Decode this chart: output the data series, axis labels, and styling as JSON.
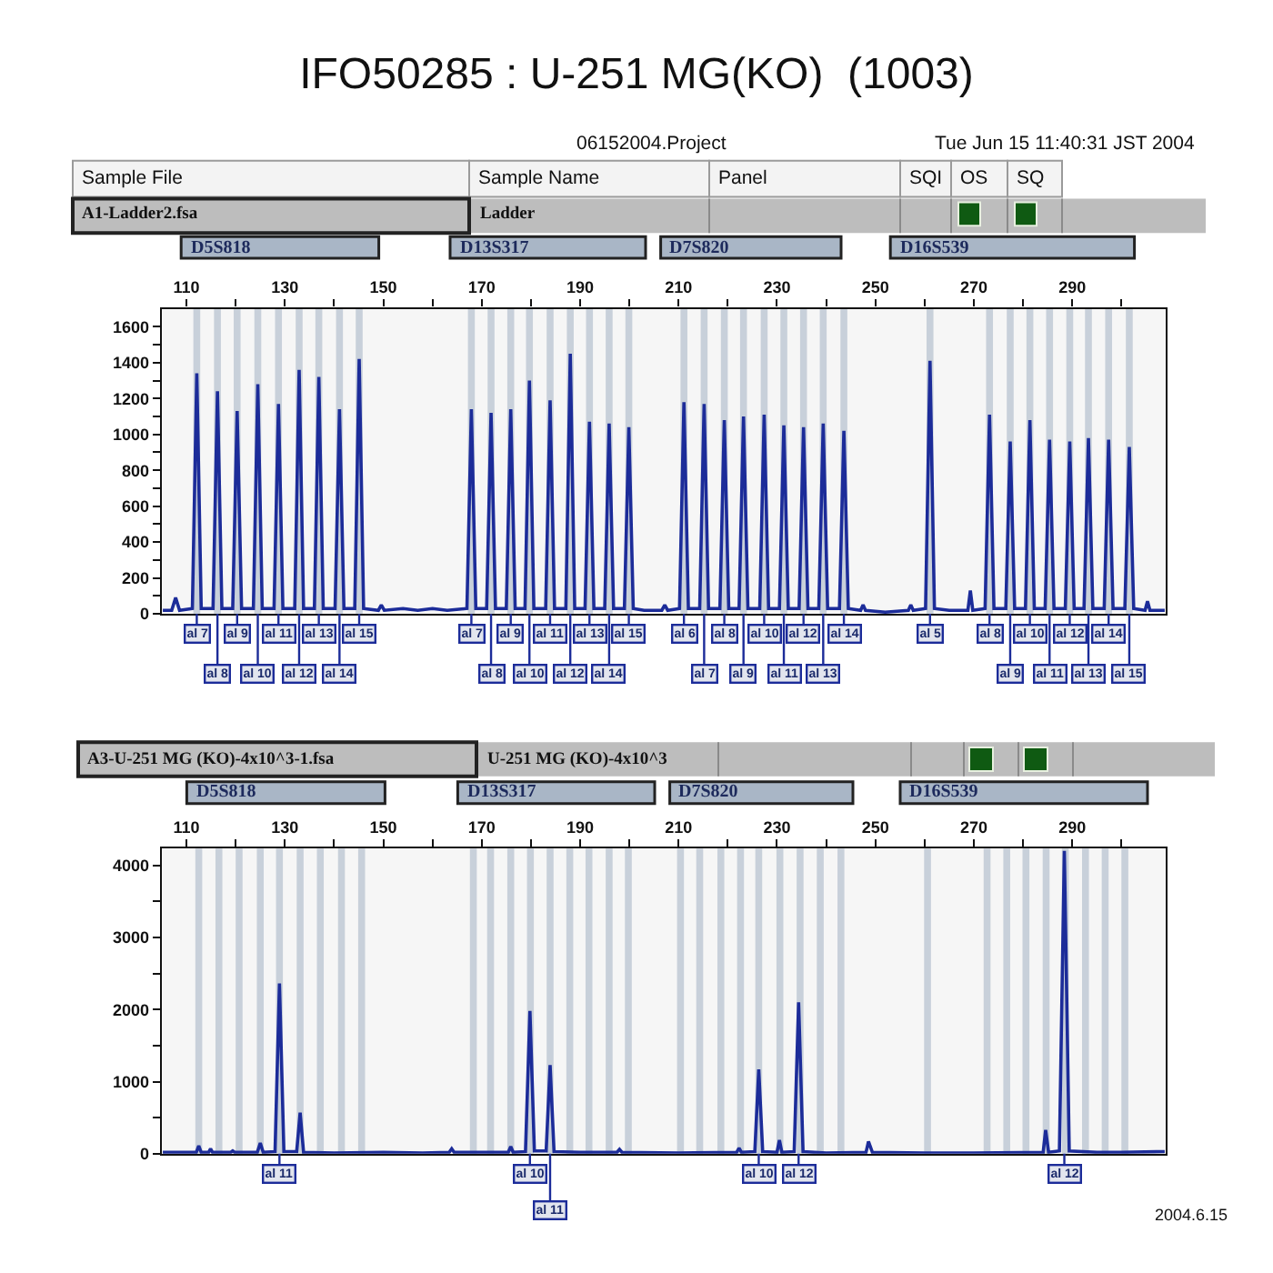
{
  "chart_data": [
    {
      "type": "line",
      "title": "IFO50285 : U-251 MG(KO)  (1003)",
      "x": [
        105.2,
        107.0,
        107.8,
        108.6,
        111.2,
        112.1,
        113.0,
        115.4,
        116.3,
        117.2,
        119.4,
        120.3,
        121.2,
        123.6,
        124.5,
        125.4,
        127.8,
        128.7,
        129.6,
        132.0,
        132.9,
        133.8,
        136.0,
        136.9,
        137.8,
        140.2,
        141.1,
        142.0,
        144.2,
        145.1,
        146.0,
        149.0,
        149.6,
        150.2,
        154.0,
        157.0,
        160.0,
        163.0,
        167.0,
        167.9,
        168.8,
        171.0,
        171.9,
        172.8,
        175.0,
        175.9,
        176.8,
        178.8,
        179.7,
        180.6,
        183.0,
        183.9,
        184.8,
        187.1,
        188.0,
        188.9,
        191.0,
        191.9,
        192.8,
        195.0,
        195.9,
        196.8,
        199.0,
        199.9,
        200.8,
        203.0,
        206.6,
        207.2,
        207.8,
        210.2,
        211.1,
        212.0,
        214.3,
        215.2,
        216.1,
        218.4,
        219.3,
        220.2,
        222.3,
        223.2,
        224.1,
        226.5,
        227.4,
        228.3,
        230.5,
        231.4,
        232.3,
        234.5,
        235.4,
        236.3,
        238.5,
        239.4,
        240.3,
        242.7,
        243.6,
        244.5,
        247.0,
        247.5,
        248.0,
        252.0,
        256.7,
        257.2,
        257.7,
        260.2,
        261.1,
        262.0,
        265.0,
        268.8,
        269.3,
        269.8,
        272.3,
        273.2,
        274.1,
        276.5,
        277.4,
        278.3,
        280.5,
        281.4,
        282.3,
        284.5,
        285.4,
        286.3,
        288.6,
        289.5,
        290.4,
        292.4,
        293.3,
        294.2,
        296.5,
        297.4,
        298.3,
        300.7,
        301.6,
        302.5,
        304.8,
        305.3,
        305.8,
        308.8
      ],
      "series": [
        {
          "color": "#1c2c99",
          "values": [
            20,
            20,
            90,
            20,
            30,
            1340,
            30,
            30,
            1240,
            30,
            30,
            1130,
            30,
            30,
            1280,
            30,
            30,
            1170,
            30,
            30,
            1360,
            30,
            30,
            1320,
            30,
            30,
            1140,
            30,
            30,
            1420,
            30,
            20,
            50,
            20,
            30,
            20,
            30,
            20,
            30,
            1140,
            30,
            30,
            1120,
            30,
            30,
            1140,
            30,
            30,
            1300,
            30,
            30,
            1190,
            30,
            30,
            1450,
            30,
            30,
            1070,
            30,
            30,
            1060,
            30,
            30,
            1040,
            30,
            20,
            20,
            50,
            20,
            30,
            1180,
            30,
            30,
            1170,
            30,
            30,
            1080,
            30,
            30,
            1100,
            30,
            30,
            1110,
            30,
            30,
            1050,
            30,
            30,
            1040,
            30,
            30,
            1060,
            30,
            30,
            1020,
            30,
            20,
            50,
            20,
            10,
            20,
            50,
            20,
            30,
            1410,
            30,
            20,
            20,
            130,
            20,
            30,
            1110,
            30,
            30,
            960,
            30,
            30,
            1080,
            30,
            30,
            970,
            30,
            30,
            960,
            30,
            30,
            980,
            30,
            30,
            970,
            30,
            30,
            930,
            30,
            20,
            70,
            20,
            20
          ]
        }
      ],
      "xlim": [
        105,
        309
      ],
      "ylim": [
        0,
        1700
      ],
      "xticks": [
        110,
        {
          "value": 120,
          "label": null
        },
        130,
        {
          "value": 140,
          "label": null
        },
        150,
        {
          "value": 160,
          "label": null
        },
        170,
        {
          "value": 180,
          "label": null
        },
        190,
        {
          "value": 200,
          "label": null
        },
        210,
        {
          "value": 220,
          "label": null
        },
        230,
        {
          "value": 240,
          "label": null
        },
        250,
        {
          "value": 260,
          "label": null
        },
        270,
        {
          "value": 280,
          "label": null
        },
        290,
        {
          "value": 300,
          "label": null
        }
      ],
      "yticks": [
        0,
        {
          "value": 100,
          "label": null
        },
        200,
        {
          "value": 300,
          "label": null
        },
        400,
        {
          "value": 500,
          "label": null
        },
        600,
        {
          "value": 700,
          "label": null
        },
        800,
        {
          "value": 900,
          "label": null
        },
        1000,
        {
          "value": 1100,
          "label": null
        },
        1200,
        {
          "value": 1300,
          "label": null
        },
        1400,
        {
          "value": 1500,
          "label": null
        },
        1600
      ],
      "bands": [
        {
          "axis": "x",
          "from": 111.4,
          "to": 112.8,
          "color": "#c8d0da"
        },
        {
          "axis": "x",
          "from": 115.6,
          "to": 117.0,
          "color": "#c8d0da"
        },
        {
          "axis": "x",
          "from": 119.6,
          "to": 121.0,
          "color": "#c8d0da"
        },
        {
          "axis": "x",
          "from": 123.8,
          "to": 125.2,
          "color": "#c8d0da"
        },
        {
          "axis": "x",
          "from": 128.0,
          "to": 129.4,
          "color": "#c8d0da"
        },
        {
          "axis": "x",
          "from": 132.2,
          "to": 133.6,
          "color": "#c8d0da"
        },
        {
          "axis": "x",
          "from": 136.2,
          "to": 137.6,
          "color": "#c8d0da"
        },
        {
          "axis": "x",
          "from": 140.4,
          "to": 141.8,
          "color": "#c8d0da"
        },
        {
          "axis": "x",
          "from": 144.4,
          "to": 145.8,
          "color": "#c8d0da"
        },
        {
          "axis": "x",
          "from": 167.2,
          "to": 168.6,
          "color": "#c8d0da"
        },
        {
          "axis": "x",
          "from": 171.2,
          "to": 172.6,
          "color": "#c8d0da"
        },
        {
          "axis": "x",
          "from": 175.2,
          "to": 176.6,
          "color": "#c8d0da"
        },
        {
          "axis": "x",
          "from": 179.0,
          "to": 180.4,
          "color": "#c8d0da"
        },
        {
          "axis": "x",
          "from": 183.2,
          "to": 184.6,
          "color": "#c8d0da"
        },
        {
          "axis": "x",
          "from": 187.3,
          "to": 188.7,
          "color": "#c8d0da"
        },
        {
          "axis": "x",
          "from": 191.2,
          "to": 192.6,
          "color": "#c8d0da"
        },
        {
          "axis": "x",
          "from": 195.2,
          "to": 196.6,
          "color": "#c8d0da"
        },
        {
          "axis": "x",
          "from": 199.2,
          "to": 200.6,
          "color": "#c8d0da"
        },
        {
          "axis": "x",
          "from": 210.4,
          "to": 211.8,
          "color": "#c8d0da"
        },
        {
          "axis": "x",
          "from": 214.5,
          "to": 215.9,
          "color": "#c8d0da"
        },
        {
          "axis": "x",
          "from": 218.6,
          "to": 220.0,
          "color": "#c8d0da"
        },
        {
          "axis": "x",
          "from": 222.5,
          "to": 223.9,
          "color": "#c8d0da"
        },
        {
          "axis": "x",
          "from": 226.7,
          "to": 228.1,
          "color": "#c8d0da"
        },
        {
          "axis": "x",
          "from": 230.7,
          "to": 232.1,
          "color": "#c8d0da"
        },
        {
          "axis": "x",
          "from": 234.7,
          "to": 236.1,
          "color": "#c8d0da"
        },
        {
          "axis": "x",
          "from": 238.7,
          "to": 240.1,
          "color": "#c8d0da"
        },
        {
          "axis": "x",
          "from": 242.9,
          "to": 244.3,
          "color": "#c8d0da"
        },
        {
          "axis": "x",
          "from": 260.4,
          "to": 261.8,
          "color": "#c8d0da"
        },
        {
          "axis": "x",
          "from": 272.5,
          "to": 273.9,
          "color": "#c8d0da"
        },
        {
          "axis": "x",
          "from": 276.7,
          "to": 278.1,
          "color": "#c8d0da"
        },
        {
          "axis": "x",
          "from": 280.7,
          "to": 282.1,
          "color": "#c8d0da"
        },
        {
          "axis": "x",
          "from": 284.7,
          "to": 286.1,
          "color": "#c8d0da"
        },
        {
          "axis": "x",
          "from": 288.8,
          "to": 290.2,
          "color": "#c8d0da"
        },
        {
          "axis": "x",
          "from": 292.6,
          "to": 294.0,
          "color": "#c8d0da"
        },
        {
          "axis": "x",
          "from": 296.7,
          "to": 298.1,
          "color": "#c8d0da"
        },
        {
          "axis": "x",
          "from": 300.9,
          "to": 302.3,
          "color": "#c8d0da"
        }
      ],
      "annotations": [
        "06152004.Project",
        "Tue Jun 15 11:40:31 JST 2004",
        "Sample File",
        "Sample Name",
        "Panel",
        "SQI",
        "OS",
        "SQ",
        "A1-Ladder2.fsa",
        "Ladder",
        "D5S818",
        "D13S317",
        "D7S820",
        "D16S539",
        {
          "text": "al 7",
          "x": 112.1,
          "y": 0
        },
        {
          "text": "al 8",
          "x": 116.3,
          "y": 0
        },
        {
          "text": "al 9",
          "x": 120.3,
          "y": 0
        },
        {
          "text": "al 10",
          "x": 124.5,
          "y": 0
        },
        {
          "text": "al 11",
          "x": 128.7,
          "y": 0
        },
        {
          "text": "al 12",
          "x": 132.9,
          "y": 0
        },
        {
          "text": "al 13",
          "x": 136.9,
          "y": 0
        },
        {
          "text": "al 14",
          "x": 141.1,
          "y": 0
        },
        {
          "text": "al 15",
          "x": 145.1,
          "y": 0
        },
        {
          "text": "al 7",
          "x": 167.9,
          "y": 0
        },
        {
          "text": "al 8",
          "x": 171.9,
          "y": 0
        },
        {
          "text": "al 9",
          "x": 175.9,
          "y": 0
        },
        {
          "text": "al 10",
          "x": 179.7,
          "y": 0
        },
        {
          "text": "al 11",
          "x": 183.9,
          "y": 0
        },
        {
          "text": "al 12",
          "x": 188.0,
          "y": 0
        },
        {
          "text": "al 13",
          "x": 191.9,
          "y": 0
        },
        {
          "text": "al 14",
          "x": 195.9,
          "y": 0
        },
        {
          "text": "al 15",
          "x": 199.9,
          "y": 0
        },
        {
          "text": "al 6",
          "x": 211.1,
          "y": 0
        },
        {
          "text": "al 7",
          "x": 215.2,
          "y": 0
        },
        {
          "text": "al 8",
          "x": 219.3,
          "y": 0
        },
        {
          "text": "al 9",
          "x": 223.2,
          "y": 0
        },
        {
          "text": "al 10",
          "x": 227.4,
          "y": 0
        },
        {
          "text": "al 11",
          "x": 231.4,
          "y": 0
        },
        {
          "text": "al 12",
          "x": 235.4,
          "y": 0
        },
        {
          "text": "al 13",
          "x": 239.4,
          "y": 0
        },
        {
          "text": "al 14",
          "x": 243.6,
          "y": 0
        },
        {
          "text": "al 5",
          "x": 261.1,
          "y": 0
        },
        {
          "text": "al 8",
          "x": 273.2,
          "y": 0
        },
        {
          "text": "al 9",
          "x": 277.4,
          "y": 0
        },
        {
          "text": "al 10",
          "x": 281.4,
          "y": 0
        },
        {
          "text": "al 11",
          "x": 285.4,
          "y": 0
        },
        {
          "text": "al 12",
          "x": 289.5,
          "y": 0
        },
        {
          "text": "al 13",
          "x": 293.3,
          "y": 0
        },
        {
          "text": "al 14",
          "x": 297.4,
          "y": 0
        },
        {
          "text": "al 15",
          "x": 301.6,
          "y": 0
        }
      ]
    },
    {
      "type": "line",
      "x": [
        105.2,
        112.0,
        112.5,
        113.0,
        114.5,
        114.9,
        115.3,
        119.0,
        119.4,
        119.8,
        124.4,
        125.0,
        125.6,
        128.0,
        128.9,
        129.8,
        132.4,
        133.1,
        133.8,
        140.0,
        150.0,
        158.0,
        163.4,
        163.9,
        164.4,
        170.0,
        175.4,
        175.9,
        176.4,
        178.9,
        179.8,
        180.7,
        183.1,
        183.9,
        184.7,
        190.0,
        197.5,
        198.0,
        198.5,
        210.0,
        221.8,
        222.3,
        222.8,
        225.5,
        226.3,
        227.1,
        230.0,
        230.5,
        231.0,
        233.5,
        234.4,
        235.3,
        240.0,
        248.1,
        248.6,
        249.4,
        260.0,
        270.0,
        284.1,
        284.6,
        285.2,
        287.4,
        288.4,
        289.4,
        295.0,
        300.0,
        308.8
      ],
      "series": [
        {
          "color": "#1c2c99",
          "values": [
            20,
            20,
            110,
            20,
            20,
            70,
            20,
            20,
            40,
            20,
            20,
            150,
            20,
            30,
            2360,
            30,
            30,
            570,
            20,
            10,
            20,
            10,
            20,
            70,
            20,
            20,
            20,
            100,
            20,
            30,
            1980,
            40,
            40,
            1230,
            30,
            20,
            20,
            60,
            20,
            10,
            20,
            80,
            20,
            30,
            1170,
            30,
            20,
            190,
            20,
            30,
            2100,
            30,
            10,
            20,
            170,
            20,
            10,
            10,
            20,
            330,
            20,
            40,
            4200,
            40,
            20,
            20,
            30
          ]
        }
      ],
      "xlim": [
        105,
        309
      ],
      "ylim": [
        0,
        4230
      ],
      "xticks": [
        110,
        {
          "value": 120,
          "label": null
        },
        130,
        {
          "value": 140,
          "label": null
        },
        150,
        {
          "value": 160,
          "label": null
        },
        170,
        {
          "value": 180,
          "label": null
        },
        190,
        {
          "value": 200,
          "label": null
        },
        210,
        {
          "value": 220,
          "label": null
        },
        230,
        {
          "value": 240,
          "label": null
        },
        250,
        {
          "value": 260,
          "label": null
        },
        270,
        {
          "value": 280,
          "label": null
        },
        290,
        {
          "value": 300,
          "label": null
        }
      ],
      "yticks": [
        0,
        {
          "value": 500,
          "label": null
        },
        1000,
        {
          "value": 1500,
          "label": null
        },
        2000,
        {
          "value": 2500,
          "label": null
        },
        3000,
        {
          "value": 3500,
          "label": null
        },
        4000
      ],
      "bands": [
        {
          "axis": "x",
          "from": 111.8,
          "to": 113.2,
          "color": "#c8d0da"
        },
        {
          "axis": "x",
          "from": 115.9,
          "to": 117.3,
          "color": "#c8d0da"
        },
        {
          "axis": "x",
          "from": 120.0,
          "to": 121.4,
          "color": "#c8d0da"
        },
        {
          "axis": "x",
          "from": 124.3,
          "to": 125.7,
          "color": "#c8d0da"
        },
        {
          "axis": "x",
          "from": 128.2,
          "to": 129.6,
          "color": "#c8d0da"
        },
        {
          "axis": "x",
          "from": 132.4,
          "to": 133.8,
          "color": "#c8d0da"
        },
        {
          "axis": "x",
          "from": 136.5,
          "to": 137.9,
          "color": "#c8d0da"
        },
        {
          "axis": "x",
          "from": 140.8,
          "to": 142.2,
          "color": "#c8d0da"
        },
        {
          "axis": "x",
          "from": 144.9,
          "to": 146.3,
          "color": "#c8d0da"
        },
        {
          "axis": "x",
          "from": 167.6,
          "to": 169.0,
          "color": "#c8d0da"
        },
        {
          "axis": "x",
          "from": 171.1,
          "to": 172.5,
          "color": "#c8d0da"
        },
        {
          "axis": "x",
          "from": 175.2,
          "to": 176.6,
          "color": "#c8d0da"
        },
        {
          "axis": "x",
          "from": 179.2,
          "to": 180.6,
          "color": "#c8d0da"
        },
        {
          "axis": "x",
          "from": 183.2,
          "to": 184.6,
          "color": "#c8d0da"
        },
        {
          "axis": "x",
          "from": 187.2,
          "to": 188.6,
          "color": "#c8d0da"
        },
        {
          "axis": "x",
          "from": 191.1,
          "to": 192.5,
          "color": "#c8d0da"
        },
        {
          "axis": "x",
          "from": 195.2,
          "to": 196.6,
          "color": "#c8d0da"
        },
        {
          "axis": "x",
          "from": 199.1,
          "to": 200.5,
          "color": "#c8d0da"
        },
        {
          "axis": "x",
          "from": 209.7,
          "to": 211.1,
          "color": "#c8d0da"
        },
        {
          "axis": "x",
          "from": 213.6,
          "to": 215.0,
          "color": "#c8d0da"
        },
        {
          "axis": "x",
          "from": 217.9,
          "to": 219.3,
          "color": "#c8d0da"
        },
        {
          "axis": "x",
          "from": 221.9,
          "to": 223.3,
          "color": "#c8d0da"
        },
        {
          "axis": "x",
          "from": 225.6,
          "to": 227.0,
          "color": "#c8d0da"
        },
        {
          "axis": "x",
          "from": 229.9,
          "to": 231.3,
          "color": "#c8d0da"
        },
        {
          "axis": "x",
          "from": 234.0,
          "to": 235.4,
          "color": "#c8d0da"
        },
        {
          "axis": "x",
          "from": 238.1,
          "to": 239.5,
          "color": "#c8d0da"
        },
        {
          "axis": "x",
          "from": 242.3,
          "to": 243.7,
          "color": "#c8d0da"
        },
        {
          "axis": "x",
          "from": 259.9,
          "to": 261.3,
          "color": "#c8d0da"
        },
        {
          "axis": "x",
          "from": 272.0,
          "to": 273.4,
          "color": "#c8d0da"
        },
        {
          "axis": "x",
          "from": 276.0,
          "to": 277.4,
          "color": "#c8d0da"
        },
        {
          "axis": "x",
          "from": 279.9,
          "to": 281.3,
          "color": "#c8d0da"
        },
        {
          "axis": "x",
          "from": 284.0,
          "to": 285.4,
          "color": "#c8d0da"
        },
        {
          "axis": "x",
          "from": 287.9,
          "to": 289.3,
          "color": "#c8d0da"
        },
        {
          "axis": "x",
          "from": 292.0,
          "to": 293.4,
          "color": "#c8d0da"
        },
        {
          "axis": "x",
          "from": 296.0,
          "to": 297.4,
          "color": "#c8d0da"
        },
        {
          "axis": "x",
          "from": 300.0,
          "to": 301.4,
          "color": "#c8d0da"
        }
      ],
      "annotations": [
        "A3-U-251 MG (KO)-4x10^3-1.fsa",
        "U-251 MG (KO)-4x10^3",
        "D5S818",
        "D13S317",
        "D7S820",
        "D16S539",
        "2004.6.15",
        {
          "text": "al 11",
          "x": 128.9,
          "y": 0
        },
        {
          "text": "al 10",
          "x": 179.8,
          "y": 0
        },
        {
          "text": "al 11",
          "x": 183.9,
          "y": 0
        },
        {
          "text": "al 10",
          "x": 226.3,
          "y": 0
        },
        {
          "text": "al 12",
          "x": 234.4,
          "y": 0
        },
        {
          "text": "al 12",
          "x": 288.4,
          "y": 0
        }
      ]
    }
  ]
}
